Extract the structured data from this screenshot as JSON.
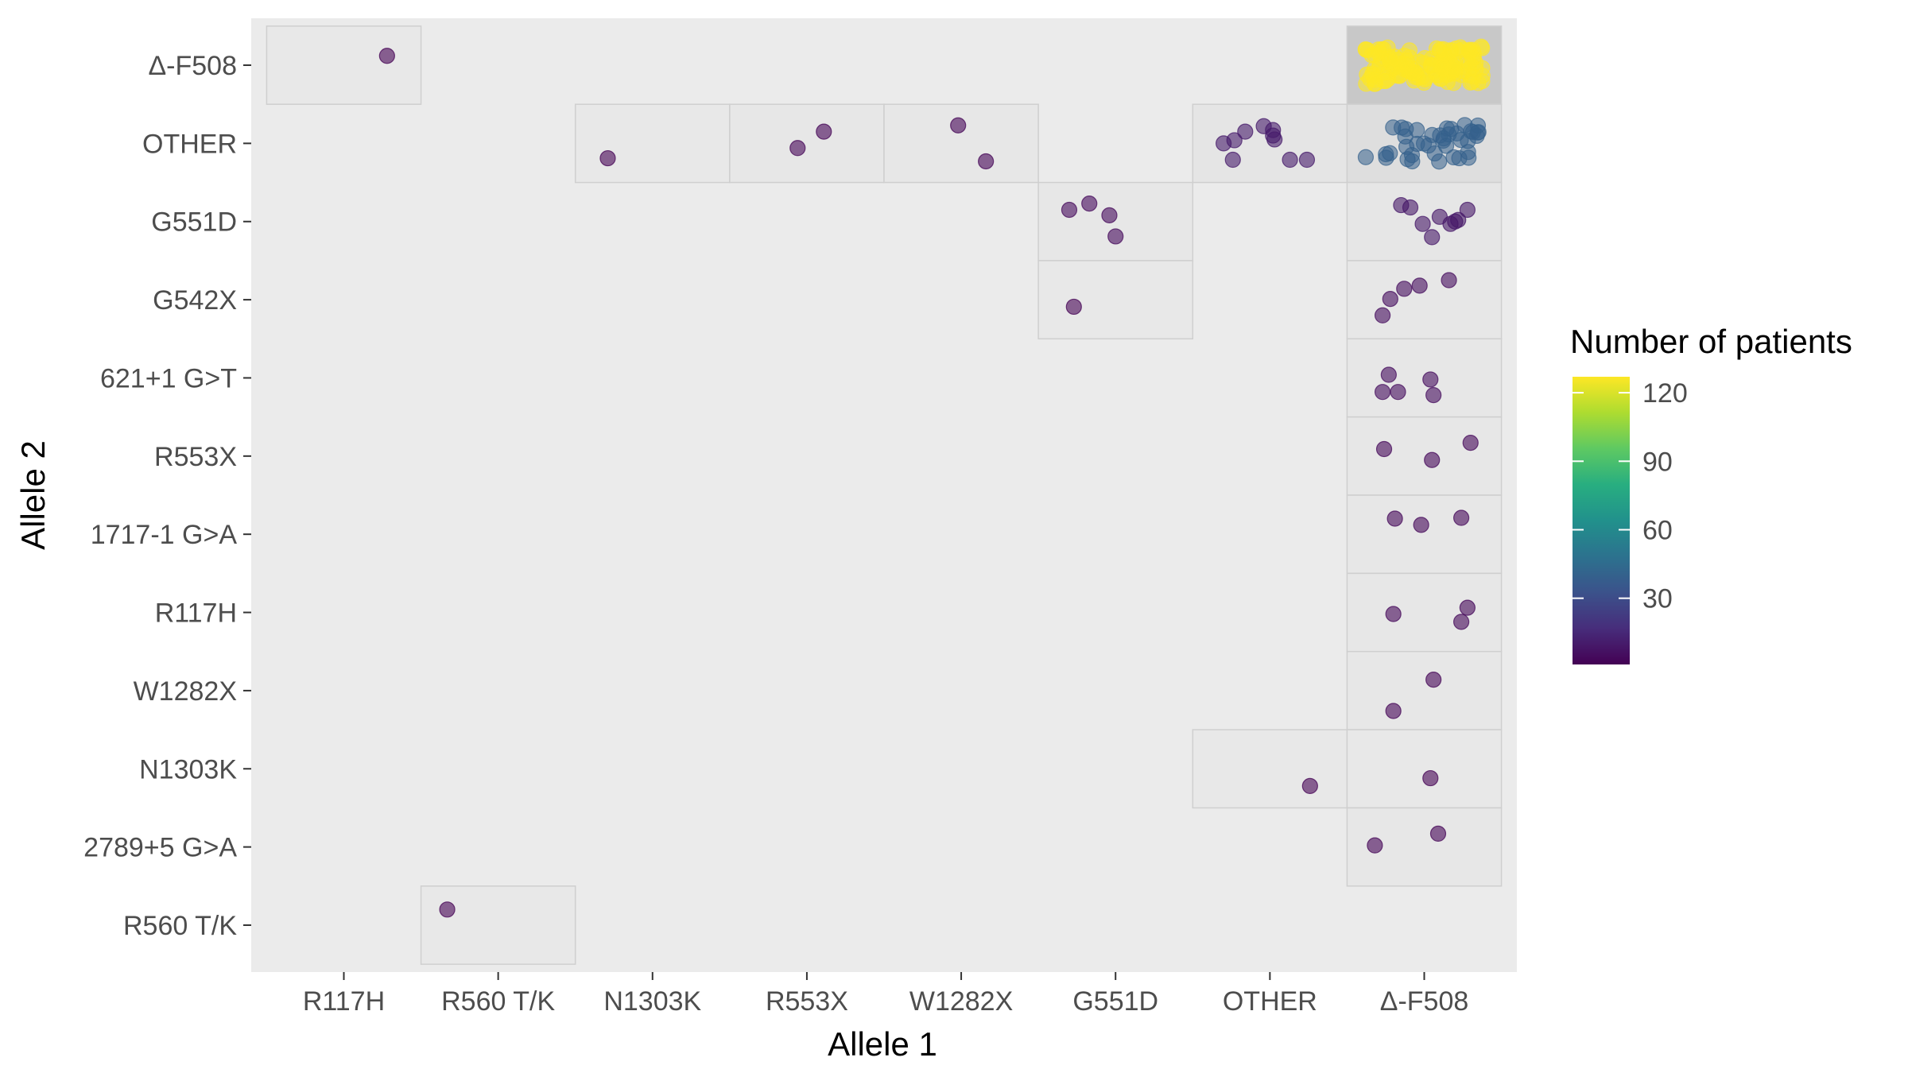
{
  "chart_data": {
    "type": "scatter",
    "xlabel": "Allele 1",
    "ylabel": "Allele 2",
    "x_categories": [
      "R117H",
      "R560 T/K",
      "N1303K",
      "R553X",
      "W1282X",
      "G551D",
      "OTHER",
      "Δ-F508"
    ],
    "y_categories": [
      "Δ-F508",
      "OTHER",
      "G551D",
      "G542X",
      "621+1 G>T",
      "R553X",
      "1717-1 G>A",
      "R117H",
      "W1282X",
      "N1303K",
      "2789+5 G>A",
      "R560 T/K"
    ],
    "legend": {
      "title": "Number of patients",
      "ticks": [
        120,
        90,
        60,
        30
      ],
      "range": [
        1,
        127
      ],
      "colormap": "viridis",
      "placement": "right"
    },
    "cells": [
      {
        "x": "R117H",
        "y": "Δ-F508",
        "count": 1
      },
      {
        "x": "Δ-F508",
        "y": "Δ-F508",
        "count": 127
      },
      {
        "x": "N1303K",
        "y": "OTHER",
        "count": 1
      },
      {
        "x": "R553X",
        "y": "OTHER",
        "count": 2
      },
      {
        "x": "W1282X",
        "y": "OTHER",
        "count": 2
      },
      {
        "x": "OTHER",
        "y": "OTHER",
        "count": 10
      },
      {
        "x": "Δ-F508",
        "y": "OTHER",
        "count": 40
      },
      {
        "x": "G551D",
        "y": "G551D",
        "count": 4
      },
      {
        "x": "Δ-F508",
        "y": "G551D",
        "count": 9
      },
      {
        "x": "G551D",
        "y": "G542X",
        "count": 1
      },
      {
        "x": "Δ-F508",
        "y": "G542X",
        "count": 5
      },
      {
        "x": "Δ-F508",
        "y": "621+1 G>T",
        "count": 5
      },
      {
        "x": "Δ-F508",
        "y": "R553X",
        "count": 3
      },
      {
        "x": "Δ-F508",
        "y": "1717-1 G>A",
        "count": 3
      },
      {
        "x": "Δ-F508",
        "y": "R117H",
        "count": 3
      },
      {
        "x": "Δ-F508",
        "y": "W1282X",
        "count": 2
      },
      {
        "x": "OTHER",
        "y": "N1303K",
        "count": 1
      },
      {
        "x": "Δ-F508",
        "y": "N1303K",
        "count": 1
      },
      {
        "x": "Δ-F508",
        "y": "2789+5 G>A",
        "count": 2
      },
      {
        "x": "R560 T/K",
        "y": "R560 T/K",
        "count": 1
      }
    ],
    "points": [
      {
        "x": "R117H",
        "y": "Δ-F508",
        "dx": 0.28,
        "dy": 0.12
      },
      {
        "x": "R560 T/K",
        "y": "R560 T/K",
        "dx": -0.33,
        "dy": 0.2
      },
      {
        "x": "N1303K",
        "y": "OTHER",
        "dx": -0.29,
        "dy": -0.19
      },
      {
        "x": "R553X",
        "y": "OTHER",
        "dx": -0.06,
        "dy": -0.06
      },
      {
        "x": "R553X",
        "y": "OTHER",
        "dx": 0.11,
        "dy": 0.15
      },
      {
        "x": "W1282X",
        "y": "OTHER",
        "dx": -0.02,
        "dy": 0.23
      },
      {
        "x": "W1282X",
        "y": "OTHER",
        "dx": 0.16,
        "dy": -0.23
      },
      {
        "x": "OTHER",
        "y": "OTHER",
        "dx": -0.3,
        "dy": 0.0
      },
      {
        "x": "OTHER",
        "y": "OTHER",
        "dx": -0.23,
        "dy": 0.04
      },
      {
        "x": "OTHER",
        "y": "OTHER",
        "dx": -0.16,
        "dy": 0.15
      },
      {
        "x": "OTHER",
        "y": "OTHER",
        "dx": -0.04,
        "dy": 0.22
      },
      {
        "x": "OTHER",
        "y": "OTHER",
        "dx": 0.02,
        "dy": 0.17
      },
      {
        "x": "OTHER",
        "y": "OTHER",
        "dx": 0.03,
        "dy": 0.05
      },
      {
        "x": "OTHER",
        "y": "OTHER",
        "dx": 0.02,
        "dy": 0.1
      },
      {
        "x": "OTHER",
        "y": "OTHER",
        "dx": -0.24,
        "dy": -0.21
      },
      {
        "x": "OTHER",
        "y": "OTHER",
        "dx": 0.13,
        "dy": -0.21
      },
      {
        "x": "OTHER",
        "y": "OTHER",
        "dx": 0.24,
        "dy": -0.21
      },
      {
        "x": "G551D",
        "y": "G551D",
        "dx": -0.3,
        "dy": 0.15
      },
      {
        "x": "G551D",
        "y": "G551D",
        "dx": -0.17,
        "dy": 0.23
      },
      {
        "x": "G551D",
        "y": "G551D",
        "dx": -0.04,
        "dy": 0.08
      },
      {
        "x": "G551D",
        "y": "G551D",
        "dx": 0.0,
        "dy": -0.19
      },
      {
        "x": "G551D",
        "y": "G542X",
        "dx": -0.27,
        "dy": -0.09
      },
      {
        "x": "Δ-F508",
        "y": "G551D",
        "dx": -0.15,
        "dy": 0.21
      },
      {
        "x": "Δ-F508",
        "y": "G551D",
        "dx": -0.09,
        "dy": 0.18
      },
      {
        "x": "Δ-F508",
        "y": "G551D",
        "dx": 0.1,
        "dy": 0.06
      },
      {
        "x": "Δ-F508",
        "y": "G551D",
        "dx": 0.17,
        "dy": -0.03
      },
      {
        "x": "Δ-F508",
        "y": "G551D",
        "dx": 0.2,
        "dy": 0.0
      },
      {
        "x": "Δ-F508",
        "y": "G551D",
        "dx": 0.22,
        "dy": 0.02
      },
      {
        "x": "Δ-F508",
        "y": "G551D",
        "dx": 0.28,
        "dy": 0.15
      },
      {
        "x": "Δ-F508",
        "y": "G551D",
        "dx": -0.01,
        "dy": -0.03
      },
      {
        "x": "Δ-F508",
        "y": "G551D",
        "dx": 0.05,
        "dy": -0.2
      },
      {
        "x": "Δ-F508",
        "y": "G542X",
        "dx": -0.22,
        "dy": 0.01
      },
      {
        "x": "Δ-F508",
        "y": "G542X",
        "dx": -0.13,
        "dy": 0.14
      },
      {
        "x": "Δ-F508",
        "y": "G542X",
        "dx": -0.03,
        "dy": 0.18
      },
      {
        "x": "Δ-F508",
        "y": "G542X",
        "dx": 0.16,
        "dy": 0.25
      },
      {
        "x": "Δ-F508",
        "y": "G542X",
        "dx": -0.27,
        "dy": -0.2
      },
      {
        "x": "Δ-F508",
        "y": "621+1 G>T",
        "dx": -0.23,
        "dy": 0.04
      },
      {
        "x": "Δ-F508",
        "y": "621+1 G>T",
        "dx": 0.04,
        "dy": -0.02
      },
      {
        "x": "Δ-F508",
        "y": "621+1 G>T",
        "dx": -0.27,
        "dy": -0.18
      },
      {
        "x": "Δ-F508",
        "y": "621+1 G>T",
        "dx": -0.17,
        "dy": -0.18
      },
      {
        "x": "Δ-F508",
        "y": "621+1 G>T",
        "dx": 0.06,
        "dy": -0.22
      },
      {
        "x": "Δ-F508",
        "y": "R553X",
        "dx": -0.26,
        "dy": 0.09
      },
      {
        "x": "Δ-F508",
        "y": "R553X",
        "dx": 0.05,
        "dy": -0.05
      },
      {
        "x": "Δ-F508",
        "y": "R553X",
        "dx": 0.3,
        "dy": 0.17
      },
      {
        "x": "Δ-F508",
        "y": "1717-1 G>A",
        "dx": -0.19,
        "dy": 0.2
      },
      {
        "x": "Δ-F508",
        "y": "1717-1 G>A",
        "dx": -0.02,
        "dy": 0.12
      },
      {
        "x": "Δ-F508",
        "y": "1717-1 G>A",
        "dx": 0.24,
        "dy": 0.21
      },
      {
        "x": "Δ-F508",
        "y": "R117H",
        "dx": -0.2,
        "dy": -0.02
      },
      {
        "x": "Δ-F508",
        "y": "R117H",
        "dx": 0.28,
        "dy": 0.06
      },
      {
        "x": "Δ-F508",
        "y": "R117H",
        "dx": 0.24,
        "dy": -0.12
      },
      {
        "x": "Δ-F508",
        "y": "W1282X",
        "dx": 0.06,
        "dy": 0.14
      },
      {
        "x": "Δ-F508",
        "y": "W1282X",
        "dx": -0.2,
        "dy": -0.26
      },
      {
        "x": "OTHER",
        "y": "N1303K",
        "dx": 0.26,
        "dy": -0.22
      },
      {
        "x": "Δ-F508",
        "y": "N1303K",
        "dx": 0.04,
        "dy": -0.12
      },
      {
        "x": "Δ-F508",
        "y": "2789+5 G>A",
        "dx": 0.09,
        "dy": 0.17
      },
      {
        "x": "Δ-F508",
        "y": "2789+5 G>A",
        "dx": -0.32,
        "dy": 0.02
      }
    ]
  }
}
